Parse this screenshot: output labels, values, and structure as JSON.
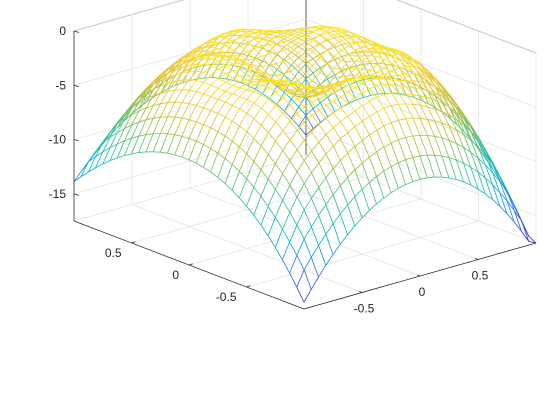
{
  "chart_data": {
    "type": "mesh",
    "title": "",
    "xlabel": "",
    "ylabel": "",
    "zlabel": "",
    "x_range": [
      -1,
      1
    ],
    "y_range": [
      -1,
      1
    ],
    "zlim": [
      -17.5,
      0
    ],
    "grid": true,
    "colormap": "parula",
    "colormap_stops": [
      "#3e26a8",
      "#2f7af4",
      "#0fb5cf",
      "#4cc487",
      "#c2bd3b",
      "#fbd03a",
      "#f9fb0e"
    ],
    "z_ticks": [
      {
        "value": 0,
        "label": "0"
      },
      {
        "value": -5,
        "label": "-5"
      },
      {
        "value": -10,
        "label": "-10"
      },
      {
        "value": -15,
        "label": "-15"
      }
    ],
    "x_ticks": [
      {
        "value": -0.5,
        "label": "-0.5"
      },
      {
        "value": 0,
        "label": "0"
      },
      {
        "value": 0.5,
        "label": "0.5"
      }
    ],
    "y_ticks": [
      {
        "value": -0.5,
        "label": "-0.5"
      },
      {
        "value": 0,
        "label": "0"
      },
      {
        "value": 0.5,
        "label": "0.5"
      }
    ],
    "grid_resolution": 33,
    "corner_values": {
      "x-1,y1": -13,
      "x1,y1": -14.8,
      "x1,y-1": -17.5,
      "x-1,y-1": -16
    },
    "peak_value": -1.5,
    "center_dip_value": -5
  }
}
